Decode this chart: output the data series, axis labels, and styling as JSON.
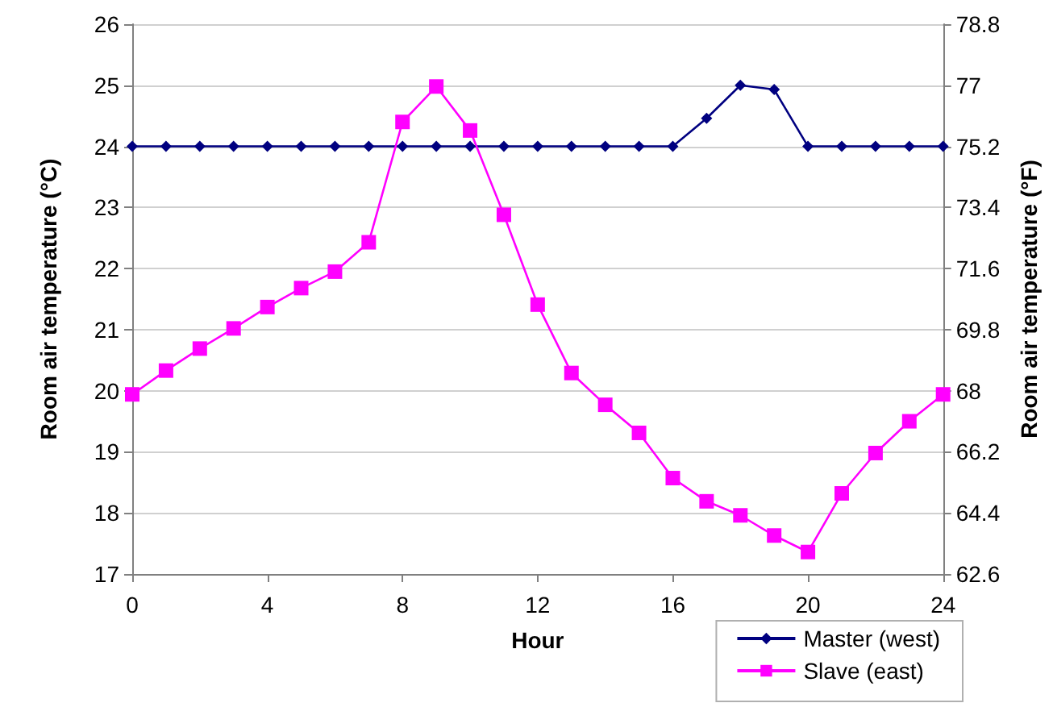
{
  "chart_data": {
    "type": "line",
    "xlabel": "Hour",
    "ylabel": "Room air temperature (°C)",
    "y2label": "Room air temperature (°F)",
    "x": [
      0,
      1,
      2,
      3,
      4,
      5,
      6,
      7,
      8,
      9,
      10,
      11,
      12,
      13,
      14,
      15,
      16,
      17,
      18,
      19,
      20,
      21,
      22,
      23,
      24
    ],
    "series": [
      {
        "name": "Master (west)",
        "color": "#000080",
        "marker": "diamond",
        "values": [
          24,
          24,
          24,
          24,
          24,
          24,
          24,
          24,
          24,
          24,
          24,
          24,
          24,
          24,
          24,
          24,
          24,
          24.46,
          25.0,
          24.93,
          24,
          24,
          24,
          24,
          24
        ]
      },
      {
        "name": "Slave (east)",
        "color": "#ff00ff",
        "marker": "square",
        "values": [
          19.94,
          20.33,
          20.69,
          21.02,
          21.37,
          21.68,
          21.95,
          22.43,
          24.4,
          24.98,
          24.26,
          22.88,
          21.41,
          20.29,
          19.77,
          19.31,
          18.57,
          18.19,
          17.96,
          17.63,
          17.36,
          18.32,
          18.98,
          19.5,
          19.94
        ]
      }
    ],
    "xlim": [
      0,
      24
    ],
    "xticks": [
      0,
      4,
      8,
      12,
      16,
      20,
      24
    ],
    "ylim": [
      17,
      26
    ],
    "yticks": [
      17,
      18,
      19,
      20,
      21,
      22,
      23,
      24,
      25,
      26
    ],
    "y2lim": [
      62.6,
      78.8
    ],
    "y2ticks": [
      62.6,
      64.4,
      66.2,
      68,
      69.8,
      71.6,
      73.4,
      75.2,
      77,
      78.8
    ],
    "grid": "y",
    "legend": "bottom right",
    "line_style": "solid"
  }
}
